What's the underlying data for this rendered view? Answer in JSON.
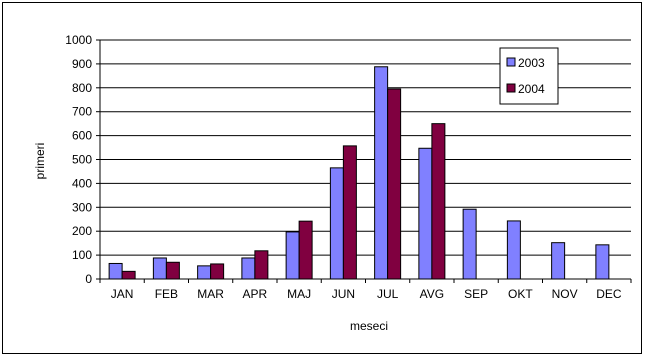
{
  "chart_data": {
    "type": "bar",
    "categories": [
      "JAN",
      "FEB",
      "MAR",
      "APR",
      "MAJ",
      "JUN",
      "JUL",
      "AVG",
      "SEP",
      "OKT",
      "NOV",
      "DEC"
    ],
    "series": [
      {
        "name": "2003",
        "color": "#8080ff",
        "values": [
          65,
          88,
          55,
          88,
          197,
          465,
          888,
          547,
          292,
          243,
          152,
          143
        ]
      },
      {
        "name": "2004",
        "color": "#800040",
        "values": [
          32,
          70,
          63,
          118,
          242,
          557,
          795,
          650,
          null,
          null,
          null,
          null
        ]
      }
    ],
    "xlabel": "meseci",
    "ylabel": "primeri",
    "ylim": [
      0,
      1000
    ],
    "yticks": [
      0,
      100,
      200,
      300,
      400,
      500,
      600,
      700,
      800,
      900,
      1000
    ],
    "grid": true,
    "legend_position": "top-right"
  }
}
